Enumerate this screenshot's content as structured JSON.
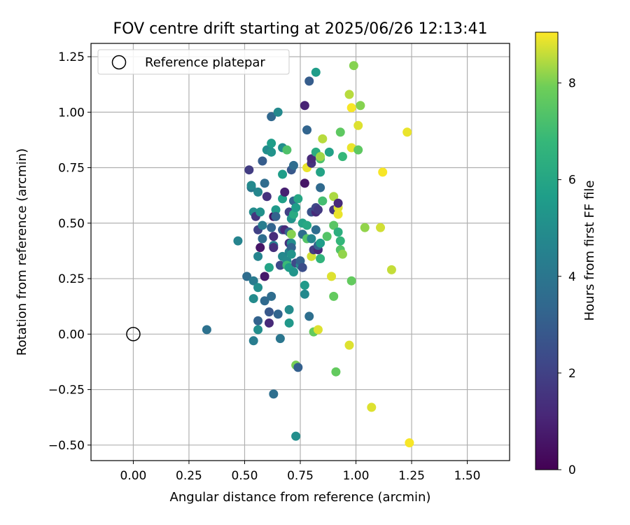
{
  "chart_data": {
    "type": "scatter",
    "title": "FOV centre drift starting at 2025/06/26 12:13:41",
    "xlabel": "Angular distance from reference (arcmin)",
    "ylabel": "Rotation from reference (arcmin)",
    "xlim": [
      -0.19,
      1.69
    ],
    "ylim": [
      -0.57,
      1.31
    ],
    "xticks": [
      0.0,
      0.25,
      0.5,
      0.75,
      1.0,
      1.25,
      1.5
    ],
    "xtick_labels": [
      "0.00",
      "0.25",
      "0.50",
      "0.75",
      "1.00",
      "1.25",
      "1.50"
    ],
    "yticks": [
      -0.5,
      -0.25,
      0.0,
      0.25,
      0.5,
      0.75,
      1.0,
      1.25
    ],
    "ytick_labels": [
      "−0.50",
      "−0.25",
      "0.00",
      "0.25",
      "0.50",
      "0.75",
      "1.00",
      "1.25"
    ],
    "grid": true,
    "legend": {
      "placement": "top-left",
      "entries": [
        "Reference platepar"
      ]
    },
    "reference_point": {
      "name": "Reference platepar",
      "x": 0.0,
      "y": 0.0
    },
    "colorbar": {
      "label": "Hours from first FF file",
      "range": [
        0,
        9.05
      ],
      "ticks": [
        0,
        2,
        4,
        6,
        8
      ],
      "tick_labels": [
        "0",
        "2",
        "4",
        "6",
        "8"
      ],
      "colormap": "viridis"
    },
    "series": [
      {
        "points": [
          [
            0.33,
            0.02,
            3.8
          ],
          [
            0.47,
            0.42,
            4.6
          ],
          [
            0.51,
            0.26,
            3.6
          ],
          [
            0.52,
            0.74,
            1.8
          ],
          [
            0.53,
            0.66,
            4.0
          ],
          [
            0.53,
            0.67,
            4.8
          ],
          [
            0.54,
            -0.03,
            4.3
          ],
          [
            0.54,
            0.24,
            4.2
          ],
          [
            0.54,
            0.16,
            4.9
          ],
          [
            0.54,
            0.55,
            4.9
          ],
          [
            0.55,
            0.53,
            1.6
          ],
          [
            0.56,
            0.06,
            3.2
          ],
          [
            0.56,
            0.21,
            5.0
          ],
          [
            0.56,
            0.35,
            4.6
          ],
          [
            0.56,
            0.47,
            2.0
          ],
          [
            0.56,
            0.64,
            4.7
          ],
          [
            0.56,
            0.02,
            5.0
          ],
          [
            0.57,
            0.39,
            0.6
          ],
          [
            0.57,
            0.55,
            5.1
          ],
          [
            0.58,
            0.43,
            3.6
          ],
          [
            0.58,
            0.49,
            4.3
          ],
          [
            0.58,
            0.78,
            3.0
          ],
          [
            0.59,
            0.15,
            3.5
          ],
          [
            0.59,
            0.26,
            0.7
          ],
          [
            0.59,
            0.68,
            3.6
          ],
          [
            0.6,
            0.62,
            1.5
          ],
          [
            0.6,
            0.83,
            5.1
          ],
          [
            0.61,
            0.05,
            1.2
          ],
          [
            0.61,
            0.1,
            2.8
          ],
          [
            0.61,
            0.3,
            5.9
          ],
          [
            0.61,
            0.83,
            4.8
          ],
          [
            0.62,
            0.17,
            3.6
          ],
          [
            0.62,
            0.48,
            3.3
          ],
          [
            0.62,
            0.86,
            5.6
          ],
          [
            0.62,
            0.98,
            3.4
          ],
          [
            0.62,
            0.82,
            5.2
          ],
          [
            0.63,
            0.44,
            1.3
          ],
          [
            0.63,
            0.53,
            0.6
          ],
          [
            0.63,
            0.4,
            4.3
          ],
          [
            0.63,
            0.39,
            1.4
          ],
          [
            0.63,
            -0.27,
            3.7
          ],
          [
            0.64,
            0.56,
            5.5
          ],
          [
            0.64,
            0.53,
            3.2
          ],
          [
            0.65,
            0.09,
            3.3
          ],
          [
            0.65,
            1.0,
            4.8
          ],
          [
            0.66,
            0.31,
            2.3
          ],
          [
            0.66,
            -0.02,
            4.0
          ],
          [
            0.67,
            0.35,
            4.8
          ],
          [
            0.67,
            0.47,
            3.1
          ],
          [
            0.67,
            0.61,
            5.7
          ],
          [
            0.67,
            0.72,
            5.6
          ],
          [
            0.67,
            0.84,
            5.0
          ],
          [
            0.68,
            0.64,
            0.9
          ],
          [
            0.68,
            0.47,
            1.2
          ],
          [
            0.69,
            0.33,
            4.9
          ],
          [
            0.69,
            0.83,
            7.3
          ],
          [
            0.69,
            0.31,
            6.9
          ],
          [
            0.7,
            0.05,
            5.4
          ],
          [
            0.7,
            0.11,
            4.9
          ],
          [
            0.7,
            0.37,
            4.6
          ],
          [
            0.7,
            0.55,
            2.0
          ],
          [
            0.7,
            0.3,
            5.6
          ],
          [
            0.7,
            0.46,
            3.1
          ],
          [
            0.7,
            0.41,
            1.5
          ],
          [
            0.71,
            0.41,
            5.0
          ],
          [
            0.71,
            0.39,
            3.2
          ],
          [
            0.71,
            0.74,
            2.8
          ],
          [
            0.71,
            0.45,
            8.1
          ],
          [
            0.71,
            0.36,
            5.2
          ],
          [
            0.71,
            0.52,
            5.3
          ],
          [
            0.72,
            0.54,
            6.2
          ],
          [
            0.72,
            0.6,
            3.3
          ],
          [
            0.72,
            0.76,
            3.6
          ],
          [
            0.72,
            0.28,
            5.3
          ],
          [
            0.73,
            0.57,
            5.6
          ],
          [
            0.73,
            -0.46,
            5.0
          ],
          [
            0.73,
            0.32,
            2.3
          ],
          [
            0.73,
            -0.14,
            8.0
          ],
          [
            0.74,
            0.61,
            6.0
          ],
          [
            0.74,
            -0.15,
            3.1
          ],
          [
            0.75,
            0.31,
            4.8
          ],
          [
            0.75,
            0.33,
            3.2
          ],
          [
            0.76,
            0.5,
            5.9
          ],
          [
            0.76,
            0.3,
            2.4
          ],
          [
            0.76,
            0.45,
            3.6
          ],
          [
            0.77,
            1.03,
            1.0
          ],
          [
            0.77,
            0.68,
            0.6
          ],
          [
            0.77,
            0.22,
            5.5
          ],
          [
            0.77,
            0.18,
            4.8
          ],
          [
            0.78,
            0.43,
            7.4
          ],
          [
            0.78,
            0.75,
            8.9
          ],
          [
            0.78,
            0.92,
            3.3
          ],
          [
            0.78,
            0.49,
            6.1
          ],
          [
            0.79,
            1.14,
            3.0
          ],
          [
            0.79,
            0.08,
            3.7
          ],
          [
            0.8,
            0.35,
            8.7
          ],
          [
            0.8,
            0.55,
            2.6
          ],
          [
            0.8,
            0.43,
            4.7
          ],
          [
            0.8,
            0.77,
            1.5
          ],
          [
            0.8,
            0.79,
            1.2
          ],
          [
            0.81,
            0.38,
            1.8
          ],
          [
            0.81,
            0.01,
            7.7
          ],
          [
            0.82,
            0.55,
            1.2
          ],
          [
            0.82,
            0.57,
            2.2
          ],
          [
            0.82,
            0.47,
            3.6
          ],
          [
            0.82,
            0.82,
            6.3
          ],
          [
            0.82,
            1.18,
            5.6
          ],
          [
            0.83,
            0.38,
            1.1
          ],
          [
            0.83,
            0.56,
            1.7
          ],
          [
            0.83,
            0.4,
            3.2
          ],
          [
            0.83,
            0.02,
            8.8
          ],
          [
            0.84,
            0.79,
            7.3
          ],
          [
            0.84,
            0.73,
            5.9
          ],
          [
            0.84,
            0.66,
            3.5
          ],
          [
            0.84,
            0.41,
            5.6
          ],
          [
            0.84,
            0.34,
            6.6
          ],
          [
            0.84,
            0.8,
            8.3
          ],
          [
            0.85,
            0.88,
            8.5
          ],
          [
            0.85,
            0.6,
            7.1
          ],
          [
            0.87,
            0.44,
            7.4
          ],
          [
            0.88,
            0.82,
            5.8
          ],
          [
            0.89,
            0.26,
            8.8
          ],
          [
            0.9,
            0.49,
            7.5
          ],
          [
            0.9,
            0.62,
            8.4
          ],
          [
            0.9,
            0.17,
            7.7
          ],
          [
            0.9,
            0.56,
            1.6
          ],
          [
            0.91,
            -0.17,
            7.7
          ],
          [
            0.92,
            0.46,
            6.4
          ],
          [
            0.92,
            0.57,
            8.8
          ],
          [
            0.92,
            0.54,
            8.9
          ],
          [
            0.92,
            0.59,
            1.2
          ],
          [
            0.93,
            0.91,
            7.6
          ],
          [
            0.93,
            0.38,
            7.4
          ],
          [
            0.93,
            0.42,
            6.7
          ],
          [
            0.94,
            0.8,
            6.8
          ],
          [
            0.94,
            0.36,
            8.2
          ],
          [
            0.97,
            1.08,
            8.5
          ],
          [
            0.97,
            -0.05,
            8.8
          ],
          [
            0.98,
            0.84,
            8.9
          ],
          [
            0.98,
            0.24,
            7.7
          ],
          [
            0.98,
            1.02,
            9.0
          ],
          [
            0.99,
            1.21,
            8.1
          ],
          [
            1.01,
            0.83,
            7.6
          ],
          [
            1.01,
            0.94,
            8.8
          ],
          [
            1.02,
            1.03,
            8.1
          ],
          [
            1.04,
            0.48,
            8.2
          ],
          [
            1.07,
            -0.33,
            8.8
          ],
          [
            1.11,
            0.48,
            8.7
          ],
          [
            1.12,
            0.73,
            9.0
          ],
          [
            1.16,
            0.29,
            8.6
          ],
          [
            1.23,
            0.91,
            8.9
          ],
          [
            1.24,
            -0.49,
            9.0
          ]
        ]
      }
    ]
  }
}
